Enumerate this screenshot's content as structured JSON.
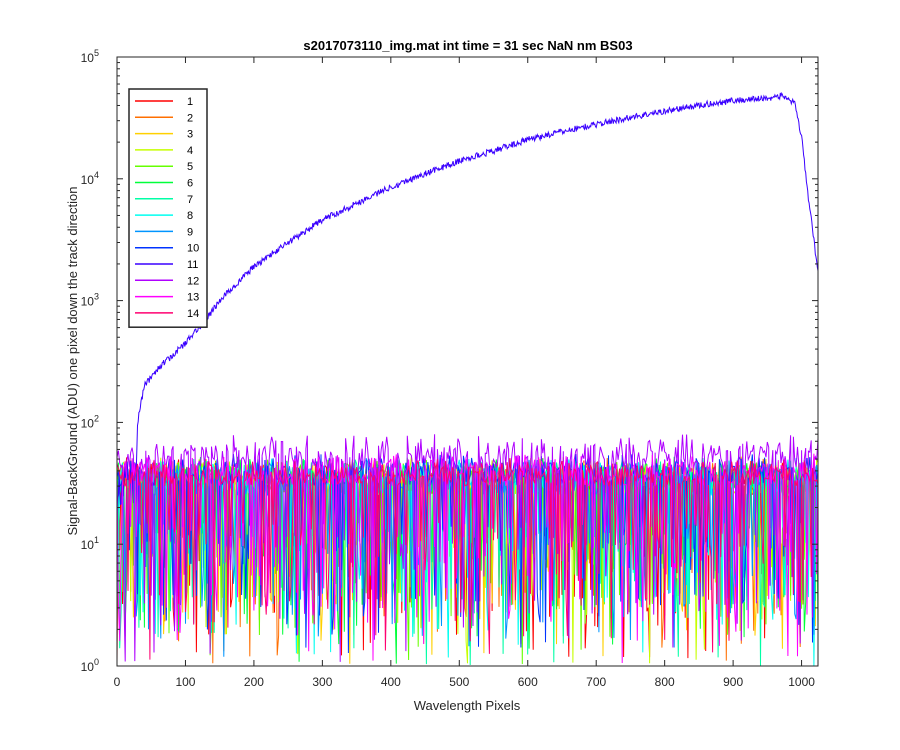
{
  "chart_data": {
    "type": "line",
    "title": "s2017073110_img.mat int time = 31 sec  NaN nm BS03",
    "xlabel": "Wavelength Pixels",
    "ylabel": "Signal-BackGround (ADU) one pixel down the track direction",
    "xlim": [
      0,
      1024
    ],
    "ylim": [
      1,
      100000
    ],
    "yscale": "log",
    "x_ticks": [
      "0",
      "100",
      "200",
      "300",
      "400",
      "500",
      "600",
      "700",
      "800",
      "900",
      "1000"
    ],
    "y_ticks": [
      {
        "base": "10",
        "exp": "0"
      },
      {
        "base": "10",
        "exp": "1"
      },
      {
        "base": "10",
        "exp": "2"
      },
      {
        "base": "10",
        "exp": "3"
      },
      {
        "base": "10",
        "exp": "4"
      },
      {
        "base": "10",
        "exp": "5"
      }
    ],
    "legend_position": "top-left",
    "grid": false,
    "series": [
      {
        "name": "1",
        "color": "#ff0000",
        "noise_level": [
          25,
          45
        ]
      },
      {
        "name": "2",
        "color": "#ff6f00",
        "noise_level": [
          25,
          45
        ]
      },
      {
        "name": "3",
        "color": "#ffd000",
        "noise_level": [
          25,
          45
        ]
      },
      {
        "name": "4",
        "color": "#c6ff00",
        "noise_level": [
          25,
          45
        ]
      },
      {
        "name": "5",
        "color": "#66ff00",
        "noise_level": [
          25,
          45
        ]
      },
      {
        "name": "6",
        "color": "#00ff3a",
        "noise_level": [
          25,
          45
        ]
      },
      {
        "name": "7",
        "color": "#00ffa6",
        "noise_level": [
          25,
          45
        ]
      },
      {
        "name": "8",
        "color": "#00fff0",
        "noise_level": [
          25,
          45
        ]
      },
      {
        "name": "9",
        "color": "#0095ff",
        "noise_level": [
          25,
          45
        ]
      },
      {
        "name": "10",
        "color": "#0033ff",
        "noise_level": [
          30,
          50
        ]
      },
      {
        "name": "11",
        "color": "#3a00ff",
        "signal": {
          "x": [
            28,
            30,
            40,
            60,
            80,
            100,
            130,
            150,
            200,
            250,
            300,
            350,
            400,
            450,
            500,
            550,
            600,
            650,
            700,
            750,
            800,
            850,
            900,
            950,
            970,
            980,
            990,
            1000,
            1010,
            1024
          ],
          "y": [
            40,
            100,
            200,
            280,
            350,
            450,
            700,
            1000,
            1900,
            3000,
            4600,
            6300,
            8600,
            11000,
            14000,
            17000,
            21000,
            24500,
            28000,
            32000,
            36000,
            40000,
            44000,
            46000,
            48000,
            46000,
            41000,
            22000,
            7000,
            1700
          ]
        }
      },
      {
        "name": "12",
        "color": "#b000ff",
        "noise_level": [
          40,
          70
        ]
      },
      {
        "name": "13",
        "color": "#ff00ff",
        "noise_level": [
          30,
          50
        ]
      },
      {
        "name": "14",
        "color": "#ff0070",
        "noise_level": [
          30,
          45
        ]
      }
    ]
  }
}
